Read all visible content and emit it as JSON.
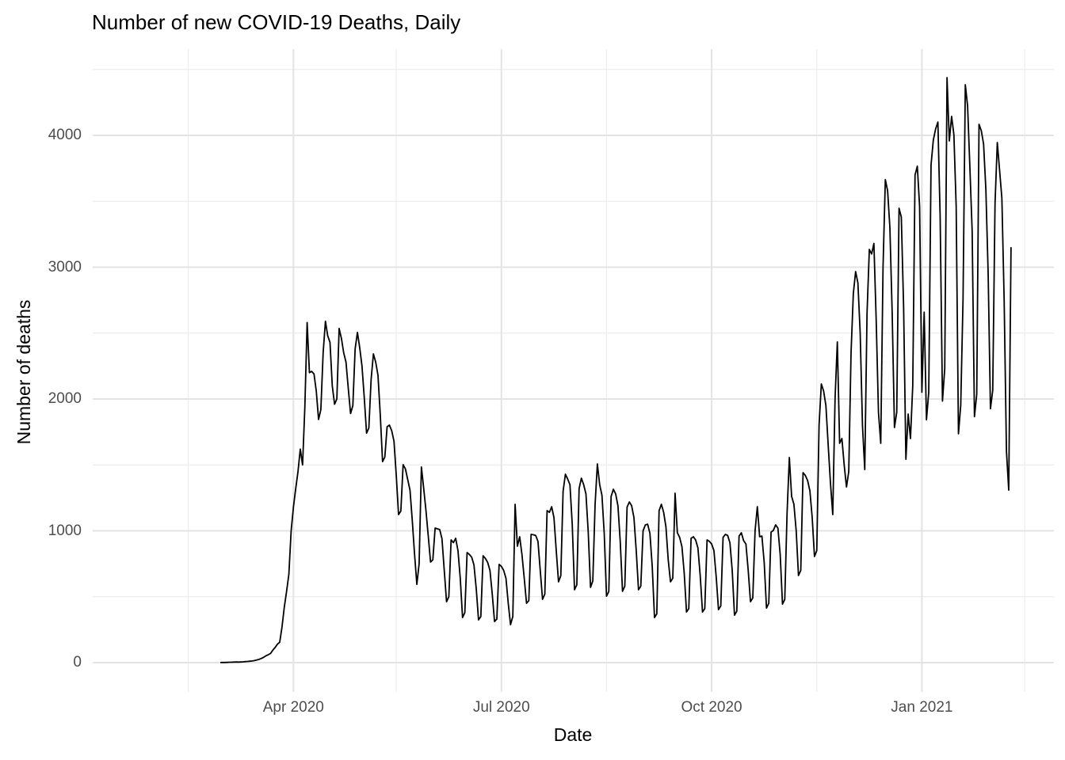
{
  "title": "Number of new COVID-19 Deaths, Daily",
  "chart_data": {
    "type": "line",
    "title": "Number of new COVID-19 Deaths, Daily",
    "xlabel": "Date",
    "ylabel": "Number of deaths",
    "legend": "none",
    "grid": "on",
    "colors": {
      "line": "#000000",
      "grid_major": "#E3E3E3",
      "grid_minor": "#EDEDED",
      "axis_text": "#4D4D4D",
      "title_text": "#000000",
      "background": "#FFFFFF"
    },
    "y_axis": {
      "title": "Number of deaths",
      "tick_labels": [
        "0",
        "1000",
        "2000",
        "3000",
        "4000"
      ],
      "tick_values": [
        0,
        1000,
        2000,
        3000,
        4000
      ],
      "minor_tick_values": [
        500,
        1500,
        2500,
        3500,
        4500
      ],
      "range_shown": [
        0,
        4500
      ]
    },
    "x_axis": {
      "title": "Date",
      "ticks": [
        {
          "label": "Apr 2020",
          "date": "2020-04-01"
        },
        {
          "label": "Jul 2020",
          "date": "2020-07-01"
        },
        {
          "label": "Oct 2020",
          "date": "2020-10-01"
        },
        {
          "label": "Jan 2021",
          "date": "2021-01-01"
        }
      ],
      "minor_dates": [
        "2020-02-15",
        "2020-05-16",
        "2020-08-16",
        "2020-11-16",
        "2021-02-15"
      ],
      "range_shown": [
        "2020-02-29",
        "2021-02-09"
      ]
    },
    "series": [
      {
        "name": "new_deaths_daily",
        "start_date": "2020-02-29",
        "frequency": "daily",
        "values": [
          1,
          1,
          1,
          2,
          3,
          3,
          4,
          5,
          4,
          5,
          6,
          8,
          9,
          11,
          13,
          16,
          20,
          25,
          32,
          41,
          52,
          60,
          70,
          95,
          115,
          140,
          155,
          270,
          420,
          540,
          670,
          1000,
          1180,
          1320,
          1450,
          1620,
          1500,
          1940,
          2580,
          2200,
          2210,
          2190,
          2060,
          1845,
          1920,
          2350,
          2590,
          2480,
          2430,
          2100,
          1960,
          2000,
          2535,
          2460,
          2350,
          2280,
          2080,
          1890,
          1950,
          2380,
          2505,
          2390,
          2250,
          2010,
          1741,
          1780,
          2150,
          2342,
          2280,
          2180,
          1880,
          1525,
          1560,
          1790,
          1802,
          1760,
          1680,
          1420,
          1123,
          1150,
          1502,
          1470,
          1390,
          1310,
          1080,
          823,
          594,
          750,
          1484,
          1322,
          1153,
          960,
          763,
          780,
          1021,
          1015,
          1010,
          940,
          700,
          462,
          500,
          931,
          910,
          943,
          850,
          640,
          342,
          380,
          835,
          820,
          800,
          740,
          560,
          324,
          350,
          811,
          790,
          760,
          700,
          520,
          312,
          330,
          745,
          730,
          700,
          640,
          450,
          288,
          350,
          1201,
          883,
          955,
          820,
          640,
          450,
          470,
          973,
          970,
          965,
          920,
          700,
          480,
          520,
          1153,
          1140,
          1183,
          1100,
          850,
          613,
          660,
          1300,
          1429,
          1393,
          1350,
          1050,
          553,
          590,
          1320,
          1399,
          1350,
          1280,
          990,
          571,
          620,
          1200,
          1507,
          1351,
          1270,
          980,
          504,
          540,
          1260,
          1315,
          1280,
          1190,
          920,
          541,
          580,
          1180,
          1219,
          1190,
          1100,
          850,
          553,
          580,
          1000,
          1045,
          1050,
          980,
          730,
          342,
          370,
          1153,
          1201,
          1140,
          1030,
          780,
          613,
          640,
          1285,
          985,
          950,
          880,
          680,
          384,
          410,
          943,
          955,
          930,
          870,
          660,
          384,
          410,
          931,
          920,
          900,
          850,
          650,
          402,
          430,
          950,
          973,
          965,
          910,
          700,
          360,
          390,
          960,
          985,
          925,
          900,
          700,
          462,
          490,
          1000,
          1183,
          955,
          960,
          760,
          414,
          450,
          990,
          1003,
          1045,
          1020,
          820,
          444,
          480,
          1130,
          1556,
          1261,
          1201,
          1000,
          661,
          700,
          1441,
          1420,
          1381,
          1303,
          1100,
          805,
          850,
          1800,
          2114,
          2060,
          1950,
          1650,
          1360,
          1123,
          2000,
          2433,
          1664,
          1700,
          1500,
          1333,
          1450,
          2350,
          2800,
          2967,
          2880,
          2500,
          1800,
          1465,
          2650,
          3135,
          3100,
          3180,
          2600,
          1900,
          1664,
          3000,
          3664,
          3580,
          3300,
          2650,
          1784,
          1900,
          3447,
          3380,
          2700,
          1543,
          1886,
          1700,
          2100,
          3700,
          3766,
          3460,
          2051,
          2659,
          1842,
          2050,
          3775,
          3964,
          4048,
          4101,
          3375,
          1984,
          2231,
          4438,
          3958,
          4144,
          4006,
          3462,
          1736,
          1954,
          2752,
          4384,
          4223,
          3760,
          3269,
          1866,
          2036,
          4084,
          4036,
          3933,
          3589,
          2947,
          1926,
          2066,
          3481,
          3946,
          3735,
          3523,
          2749,
          1603,
          1309,
          3152
        ]
      }
    ]
  }
}
